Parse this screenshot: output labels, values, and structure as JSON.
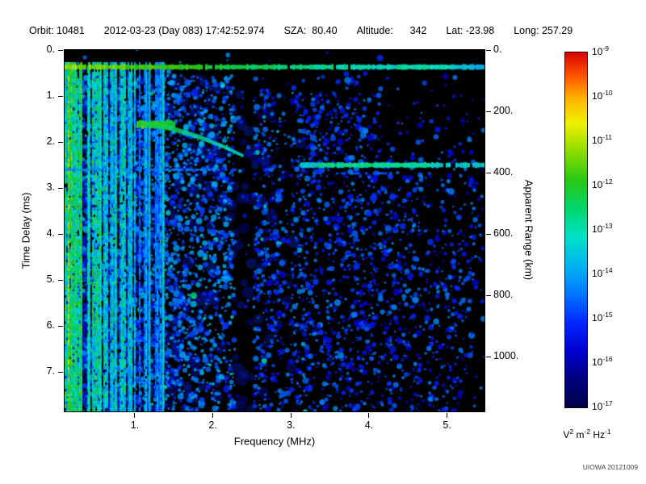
{
  "header": {
    "items": [
      "Orbit: 10481",
      "2012-03-23 (Day 083) 17:42:52.974",
      "SZA:  80.40",
      "Altitude:      342",
      "Lat: -23.98",
      "Long: 257.29"
    ]
  },
  "footer": {
    "watermark": "UIOWA 20121009"
  },
  "chart_data": {
    "type": "heatmap",
    "title": "",
    "xlabel": "Frequency (MHz)",
    "ylabel_left": "Time Delay (ms)",
    "ylabel_right": "Apparent Range (km)",
    "xlim": [
      0.1,
      5.48
    ],
    "ylim_ms": [
      0,
      7.85
    ],
    "km_per_ms": 150,
    "grid": false,
    "x_ticks": {
      "values": [
        1,
        2,
        3,
        4,
        5
      ],
      "labels": [
        "1.",
        "2.",
        "3.",
        "4.",
        "5."
      ]
    },
    "y_ticks_left": {
      "values": [
        0,
        1,
        2,
        3,
        4,
        5,
        6,
        7
      ],
      "labels": [
        "0.",
        "1.",
        "2.",
        "3.",
        "4.",
        "5.",
        "6.",
        "7."
      ]
    },
    "y_ticks_right": {
      "values_km": [
        0,
        200,
        400,
        600,
        800,
        1000
      ],
      "labels": [
        "0.",
        "200.",
        "400.",
        "600.",
        "800.",
        "1000."
      ]
    },
    "colorbar": {
      "scale": "log",
      "range": [
        1e-17,
        1e-09
      ],
      "tick_exponents": [
        "-9",
        "-10",
        "-11",
        "-12",
        "-13",
        "-14",
        "-15",
        "-16",
        "-17"
      ],
      "unit_parts": [
        [
          "V",
          "2"
        ],
        [
          "m",
          "-2"
        ],
        [
          "Hz",
          "-1"
        ]
      ]
    },
    "colormap_stops": [
      [
        0.0,
        "#000046"
      ],
      [
        0.08,
        "#000080"
      ],
      [
        0.16,
        "#0000d0"
      ],
      [
        0.24,
        "#0028ff"
      ],
      [
        0.32,
        "#0078ff"
      ],
      [
        0.4,
        "#00b4f0"
      ],
      [
        0.48,
        "#00e0c8"
      ],
      [
        0.56,
        "#00d66e"
      ],
      [
        0.64,
        "#28c814"
      ],
      [
        0.72,
        "#8cdc00"
      ],
      [
        0.8,
        "#f0f000"
      ],
      [
        0.87,
        "#ffb400"
      ],
      [
        0.93,
        "#ff5a00"
      ],
      [
        1.0,
        "#dc0000"
      ]
    ],
    "noise": {
      "seed": 20121009,
      "blob_count": 9000,
      "haze_count": 800,
      "dark_bands": [
        [
          2.28,
          2.52,
          0.08
        ],
        [
          2.85,
          3.0,
          0.45
        ],
        [
          5.32,
          5.48,
          0.55
        ]
      ],
      "stripe_f_max": 1.38,
      "stripe_t_min": 0.28,
      "bright_lines": [
        [
          0.14,
          0.78
        ],
        [
          0.18,
          0.72
        ],
        [
          0.23,
          0.66
        ],
        [
          0.3,
          0.7
        ],
        [
          0.4,
          0.6
        ],
        [
          0.55,
          0.62
        ],
        [
          0.75,
          0.58
        ],
        [
          0.95,
          0.55
        ],
        [
          1.18,
          0.56
        ],
        [
          1.35,
          0.6
        ]
      ]
    },
    "features": [
      {
        "name": "direct-signal",
        "type": "hline",
        "t": 0.37,
        "f_range": [
          0.1,
          5.48
        ],
        "v_start": 0.72,
        "v_end": 0.4,
        "thickness": 6,
        "dropout": 0.05
      },
      {
        "name": "direct-signal-bright-segment",
        "type": "hline",
        "t": 0.37,
        "f_range": [
          4.35,
          5.05
        ],
        "v_start": 0.52,
        "v_end": 0.5,
        "thickness": 5,
        "dropout": 0.0
      },
      {
        "name": "ionospheric-echo-knot",
        "type": "hline",
        "t": 1.62,
        "f_range": [
          1.02,
          1.5
        ],
        "v_start": 0.68,
        "v_end": 0.6,
        "thickness": 9,
        "dropout": 0.0
      },
      {
        "name": "ionospheric-echo-trace",
        "type": "trace",
        "points": [
          [
            1.05,
            1.58
          ],
          [
            1.45,
            1.7
          ],
          [
            1.8,
            1.88
          ],
          [
            2.1,
            2.08
          ],
          [
            2.38,
            2.3
          ]
        ],
        "v_start": 0.62,
        "v_end": 0.44,
        "th_start": 7,
        "th_end": 4
      },
      {
        "name": "low-freq-horizontal-echo",
        "type": "hline",
        "t": 2.6,
        "f_range": [
          0.1,
          2.3
        ],
        "v_start": 0.34,
        "v_end": 0.3,
        "thickness": 3,
        "dropout": 0.35
      },
      {
        "name": "surface-reflection",
        "type": "hline",
        "t": 2.5,
        "f_range": [
          3.12,
          5.48
        ],
        "v_start": 0.44,
        "v_end": 0.46,
        "thickness": 6,
        "dropout": 0.04
      },
      {
        "name": "surface-reflection-core",
        "type": "hline",
        "t": 2.5,
        "f_range": [
          3.35,
          4.75
        ],
        "v_start": 0.56,
        "v_end": 0.52,
        "thickness": 5,
        "dropout": 0.0
      },
      {
        "name": "surface-echo-faint",
        "type": "hline",
        "t": 2.68,
        "f_range": [
          3.3,
          4.3
        ],
        "v_start": 0.3,
        "v_end": 0.28,
        "thickness": 3,
        "dropout": 0.45
      }
    ]
  }
}
